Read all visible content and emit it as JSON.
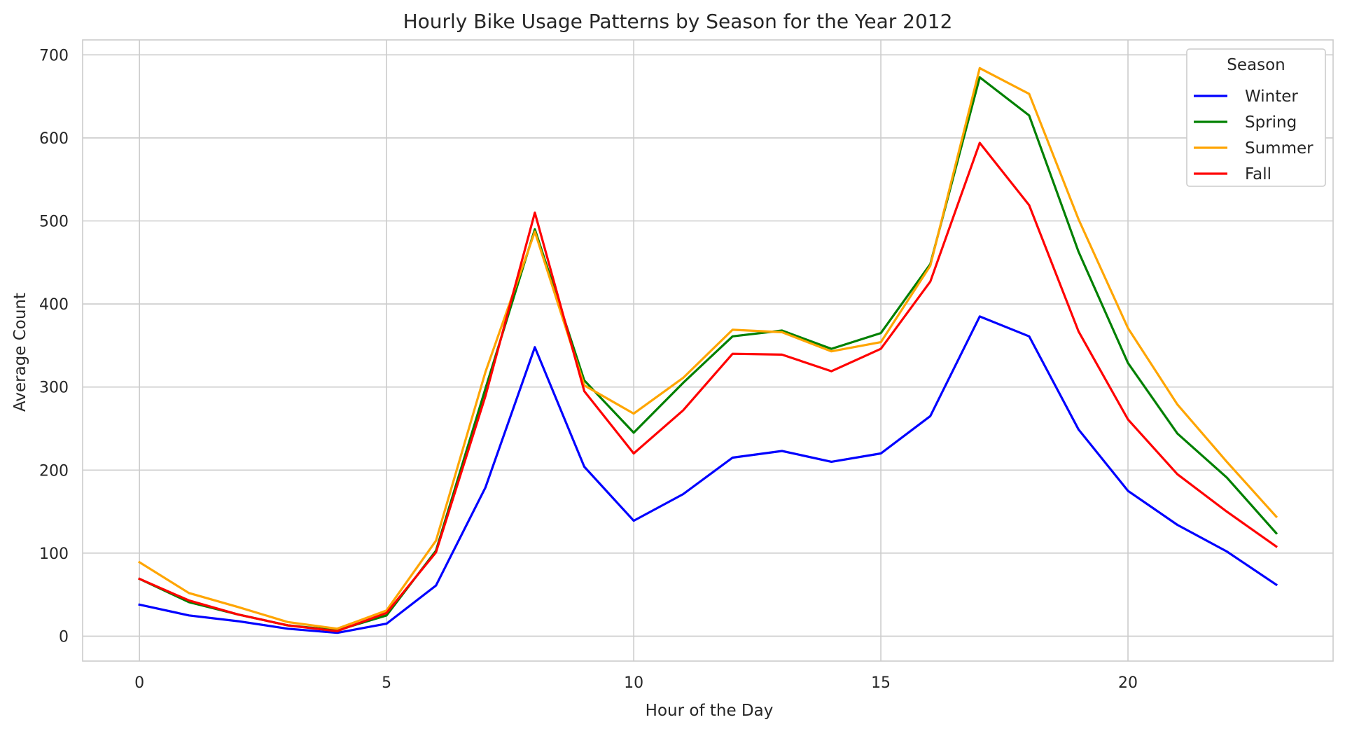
{
  "chart_data": {
    "type": "line",
    "title": "Hourly Bike Usage Patterns by Season for the Year 2012",
    "xlabel": "Hour of the Day",
    "ylabel": "Average Count",
    "xlim": [
      -1.15,
      24.15
    ],
    "ylim": [
      -30,
      718
    ],
    "x_ticks": [
      0,
      5,
      10,
      15,
      20
    ],
    "y_ticks": [
      0,
      100,
      200,
      300,
      400,
      500,
      600,
      700
    ],
    "grid": true,
    "legend": {
      "title": "Season",
      "placement": "top-right"
    },
    "x": [
      0,
      1,
      2,
      3,
      4,
      5,
      6,
      7,
      8,
      9,
      10,
      11,
      12,
      13,
      14,
      15,
      16,
      17,
      18,
      19,
      20,
      21,
      22,
      23
    ],
    "series": [
      {
        "name": "Winter",
        "color": "#0000ff",
        "values": [
          38,
          25,
          18,
          9,
          4,
          15,
          61,
          179,
          348,
          204,
          139,
          171,
          215,
          223,
          210,
          220,
          265,
          385,
          361,
          249,
          175,
          134,
          102,
          62
        ]
      },
      {
        "name": "Spring",
        "color": "#008000",
        "values": [
          69,
          41,
          26,
          13,
          7,
          25,
          103,
          298,
          490,
          308,
          245,
          305,
          361,
          368,
          346,
          365,
          448,
          673,
          627,
          463,
          329,
          244,
          191,
          124
        ]
      },
      {
        "name": "Summer",
        "color": "#ffa500",
        "values": [
          89,
          52,
          35,
          17,
          9,
          31,
          115,
          318,
          487,
          302,
          268,
          311,
          369,
          366,
          343,
          354,
          446,
          684,
          653,
          502,
          371,
          279,
          210,
          144
        ]
      },
      {
        "name": "Fall",
        "color": "#ff0000",
        "values": [
          69,
          43,
          26,
          13,
          6,
          28,
          101,
          289,
          510,
          295,
          220,
          272,
          340,
          339,
          319,
          346,
          427,
          594,
          519,
          367,
          261,
          195,
          150,
          108
        ]
      }
    ]
  }
}
